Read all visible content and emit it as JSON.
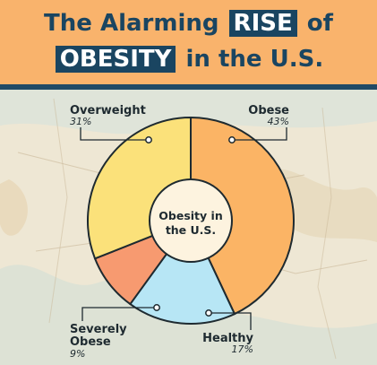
{
  "header": {
    "line1_pre": "The Alarming ",
    "line1_highlight": "RISE",
    "line1_post": " of",
    "line2_highlight": "OBESITY",
    "line2_post": " in the U.S."
  },
  "colors": {
    "header_bg": "#f9b36c",
    "title_text": "#1a4561",
    "overweight": "#fbe17a",
    "obese": "#fbb465",
    "healthy": "#b7e6f5",
    "severely_obese": "#f79a70",
    "center": "#fdf3df"
  },
  "chart_data": {
    "type": "pie",
    "style": "donut",
    "center_label": [
      "Obesity in",
      "the U.S."
    ],
    "slices": [
      {
        "label": "Obese",
        "value": 43,
        "value_text": "43%",
        "color": "#fbb465"
      },
      {
        "label": "Healthy",
        "value": 17,
        "value_text": "17%",
        "color": "#b7e6f5"
      },
      {
        "label": "Severely Obese",
        "label_lines": [
          "Severely",
          "Obese"
        ],
        "value": 9,
        "value_text": "9%",
        "color": "#f79a70"
      },
      {
        "label": "Overweight",
        "value": 31,
        "value_text": "31%",
        "color": "#fbe17a"
      }
    ],
    "title": "",
    "legend": "none"
  }
}
